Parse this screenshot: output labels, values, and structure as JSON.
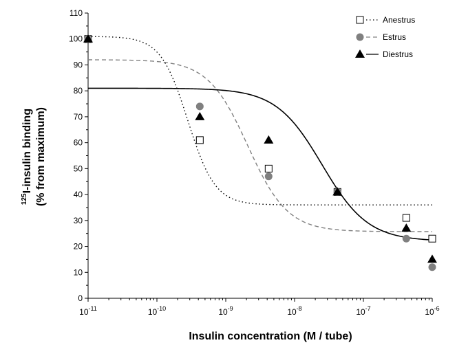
{
  "chart_data": {
    "type": "scatter",
    "title": "",
    "xlabel": "Insulin concentration (M / tube)",
    "ylabel_sup": "125",
    "ylabel_line1": "I-insulin binding",
    "ylabel_line2": "(% from maximum)",
    "x_scale": "log",
    "xlim": [
      1e-11,
      1e-06
    ],
    "ylim": [
      0,
      110
    ],
    "x_ticks": [
      {
        "base": "10",
        "exp": "-11",
        "value": 1e-11
      },
      {
        "base": "10",
        "exp": "-10",
        "value": 1e-10
      },
      {
        "base": "10",
        "exp": "-9",
        "value": 1e-09
      },
      {
        "base": "10",
        "exp": "-8",
        "value": 1e-08
      },
      {
        "base": "10",
        "exp": "-7",
        "value": 1e-07
      },
      {
        "base": "10",
        "exp": "-6",
        "value": 1e-06
      }
    ],
    "y_ticks": [
      0,
      10,
      20,
      30,
      40,
      50,
      60,
      70,
      80,
      90,
      100,
      110
    ],
    "grid": false,
    "legend_position": "top-right",
    "series": [
      {
        "name": "Anestrus",
        "marker": "open-square",
        "line": "dotted",
        "color": "#000000",
        "points": [
          {
            "x": 1e-11,
            "y": 100
          },
          {
            "x": 4.2e-10,
            "y": 61
          },
          {
            "x": 4.2e-09,
            "y": 50
          },
          {
            "x": 4.2e-08,
            "y": 41
          },
          {
            "x": 4.2e-07,
            "y": 31
          },
          {
            "x": 1e-06,
            "y": 23
          }
        ],
        "fit": {
          "top": 101,
          "bottom": 36,
          "logIC50": -9.55,
          "hill": 2.2
        }
      },
      {
        "name": "Estrus",
        "marker": "filled-circle",
        "line": "dashed",
        "color": "#808080",
        "points": [
          {
            "x": 1e-11,
            "y": 100
          },
          {
            "x": 4.2e-10,
            "y": 74
          },
          {
            "x": 4.2e-09,
            "y": 47
          },
          {
            "x": 4.2e-08,
            "y": 41
          },
          {
            "x": 4.2e-07,
            "y": 23
          },
          {
            "x": 1e-06,
            "y": 12
          }
        ],
        "fit": {
          "top": 92,
          "bottom": 25.7,
          "logIC50": -8.68,
          "hill": 1.5
        }
      },
      {
        "name": "Diestrus",
        "marker": "filled-triangle",
        "line": "solid",
        "color": "#000000",
        "points": [
          {
            "x": 1e-11,
            "y": 100
          },
          {
            "x": 4.2e-10,
            "y": 70
          },
          {
            "x": 4.2e-09,
            "y": 61
          },
          {
            "x": 4.2e-08,
            "y": 41
          },
          {
            "x": 4.2e-07,
            "y": 27
          },
          {
            "x": 1e-06,
            "y": 15
          }
        ],
        "fit": {
          "top": 81,
          "bottom": 22,
          "logIC50": -7.6,
          "hill": 1.3
        }
      }
    ]
  }
}
